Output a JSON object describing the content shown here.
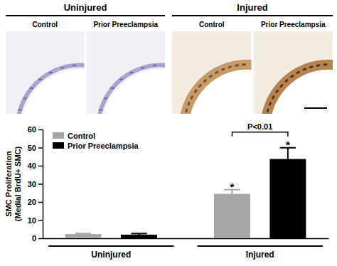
{
  "chart_data": {
    "type": "bar",
    "panels": [
      {
        "title": "Uninjured",
        "columns": [
          "Control",
          "Prior Preeclampsia"
        ]
      },
      {
        "title": "Injured",
        "columns": [
          "Control",
          "Prior Preeclampsia"
        ]
      }
    ],
    "y_label": [
      "SMC Proliferation",
      "(Medial BrdU+ SMC)"
    ],
    "categories": [
      "Uninjured",
      "Injured"
    ],
    "series": [
      {
        "name": "Control",
        "color": "#a6a6a6",
        "values": [
          2.3,
          24.5
        ],
        "errors": [
          0.3,
          2.3
        ],
        "annotations": [
          null,
          "*"
        ]
      },
      {
        "name": "Prior Preeclampsia",
        "color": "#000000",
        "values": [
          2.0,
          43.7
        ],
        "errors": [
          0.6,
          6.2
        ],
        "annotations": [
          null,
          "*"
        ]
      }
    ],
    "comparisons": [
      {
        "category_index": 1,
        "text": "P<0.01"
      }
    ],
    "ylim": [
      0,
      60
    ],
    "yticks": [
      0,
      10,
      20,
      30,
      40,
      50,
      60
    ],
    "legend": "upper left",
    "grid": false
  }
}
